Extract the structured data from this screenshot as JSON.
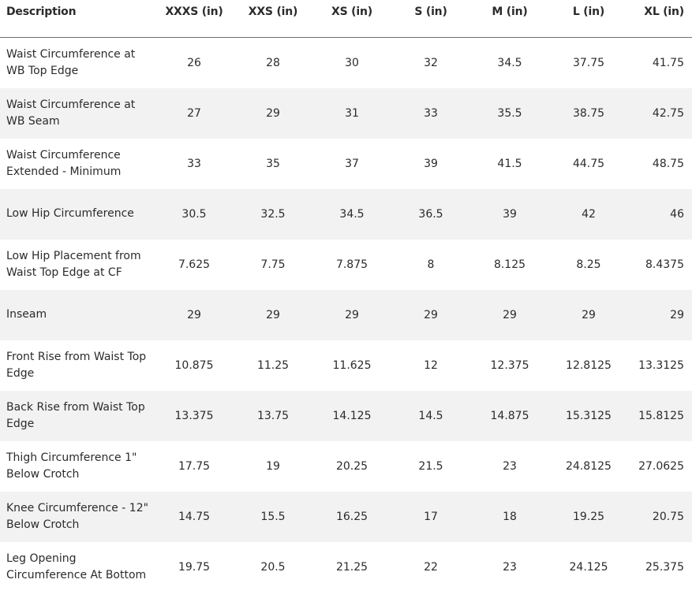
{
  "table": {
    "headers": [
      "Description",
      "XXXS (in)",
      "XXS (in)",
      "XS (in)",
      "S (in)",
      "M (in)",
      "L (in)",
      "XL (in)"
    ],
    "rows": [
      {
        "desc": [
          "Waist Circumference at",
          "WB Top Edge"
        ],
        "values": [
          "26",
          "28",
          "30",
          "32",
          "34.5",
          "37.75",
          "41.75"
        ]
      },
      {
        "desc": [
          "Waist Circumference at",
          "WB Seam"
        ],
        "values": [
          "27",
          "29",
          "31",
          "33",
          "35.5",
          "38.75",
          "42.75"
        ]
      },
      {
        "desc": [
          "Waist Circumference",
          "Extended - Minimum"
        ],
        "values": [
          "33",
          "35",
          "37",
          "39",
          "41.5",
          "44.75",
          "48.75"
        ]
      },
      {
        "desc": [
          "Low Hip Circumference"
        ],
        "values": [
          "30.5",
          "32.5",
          "34.5",
          "36.5",
          "39",
          "42",
          "46"
        ]
      },
      {
        "desc": [
          "Low Hip Placement from",
          "Waist Top Edge at CF"
        ],
        "values": [
          "7.625",
          "7.75",
          "7.875",
          "8",
          "8.125",
          "8.25",
          "8.4375"
        ]
      },
      {
        "desc": [
          "Inseam"
        ],
        "values": [
          "29",
          "29",
          "29",
          "29",
          "29",
          "29",
          "29"
        ]
      },
      {
        "desc": [
          "Front Rise from Waist Top",
          "Edge"
        ],
        "values": [
          "10.875",
          "11.25",
          "11.625",
          "12",
          "12.375",
          "12.8125",
          "13.3125"
        ]
      },
      {
        "desc": [
          "Back Rise from Waist Top",
          "Edge"
        ],
        "values": [
          "13.375",
          "13.75",
          "14.125",
          "14.5",
          "14.875",
          "15.3125",
          "15.8125"
        ]
      },
      {
        "desc": [
          "Thigh Circumference 1\"",
          "Below Crotch"
        ],
        "values": [
          "17.75",
          "19",
          "20.25",
          "21.5",
          "23",
          "24.8125",
          "27.0625"
        ]
      },
      {
        "desc": [
          "Knee Circumference - 12\"",
          "Below Crotch"
        ],
        "values": [
          "14.75",
          "15.5",
          "16.25",
          "17",
          "18",
          "19.25",
          "20.75"
        ]
      },
      {
        "desc": [
          "Leg Opening",
          "Circumference At Bottom"
        ],
        "values": [
          "19.75",
          "20.5",
          "21.25",
          "22",
          "23",
          "24.125",
          "25.375"
        ]
      }
    ]
  }
}
